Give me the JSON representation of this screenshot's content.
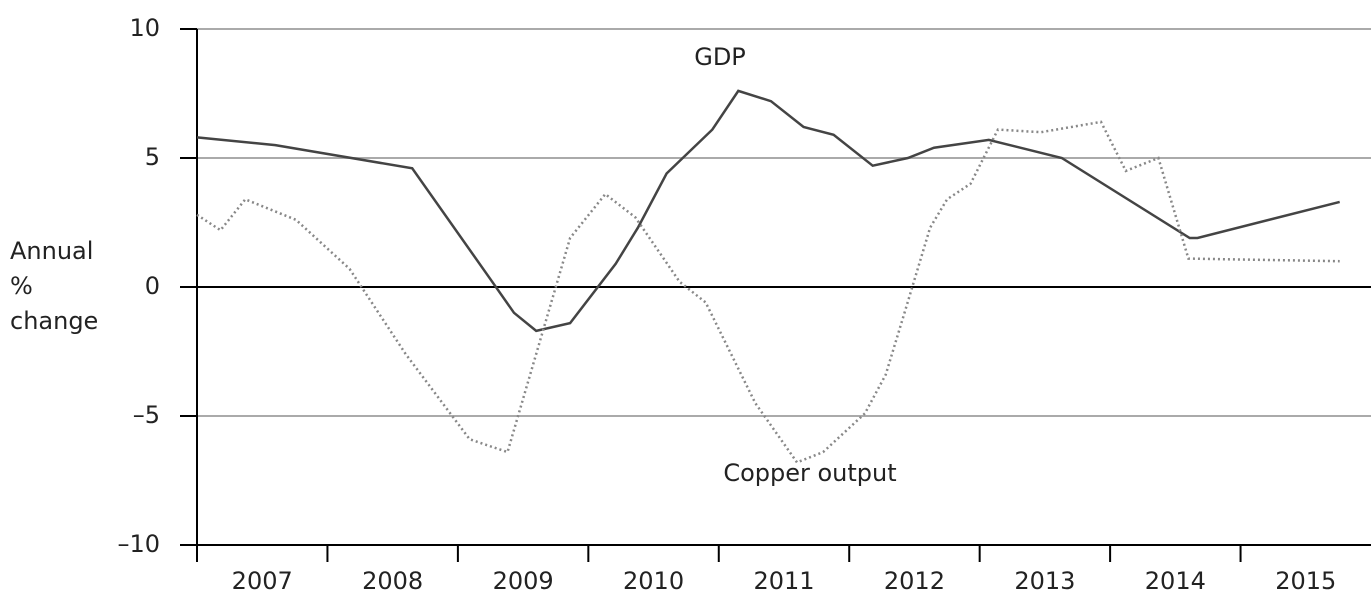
{
  "chart_data": {
    "type": "line",
    "y_label": [
      "Annual",
      "%",
      "change"
    ],
    "categories": [
      "2007",
      "2008",
      "2009",
      "2010",
      "2011",
      "2012",
      "2013",
      "2014",
      "2015"
    ],
    "xlim": [
      2007,
      2016
    ],
    "ylim": [
      -10,
      10
    ],
    "yticks": [
      {
        "value": -10,
        "label": "–10"
      },
      {
        "value": -5,
        "label": "–5"
      },
      0,
      5,
      10
    ],
    "grid": true,
    "series": [
      {
        "name": "GDP",
        "color": "#444444",
        "dash": false,
        "x": [
          2007.0,
          2007.6,
          2008.65,
          2009.25,
          2009.43,
          2009.6,
          2009.86,
          2010.21,
          2010.38,
          2010.6,
          2010.95,
          2011.15,
          2011.4,
          2011.65,
          2011.88,
          2012.18,
          2012.45,
          2012.65,
          2013.07,
          2013.63,
          2014.61,
          2014.67,
          2015.76
        ],
        "values": [
          5.8,
          5.5,
          4.6,
          0.3,
          -1.0,
          -1.7,
          -1.4,
          0.9,
          2.3,
          4.4,
          6.1,
          7.6,
          7.2,
          6.2,
          5.9,
          4.7,
          5.0,
          5.4,
          5.7,
          5.0,
          1.9,
          1.9,
          3.3
        ]
      },
      {
        "name": "Copper output",
        "color": "#888888",
        "dash": true,
        "x": [
          2007.0,
          2007.18,
          2007.37,
          2007.76,
          2008.17,
          2008.6,
          2009.09,
          2009.38,
          2009.86,
          2010.13,
          2010.36,
          2010.7,
          2010.9,
          2011.28,
          2011.6,
          2011.8,
          2012.12,
          2012.28,
          2012.43,
          2012.62,
          2012.75,
          2012.93,
          2013.14,
          2013.47,
          2013.93,
          2014.12,
          2014.37,
          2014.6,
          2015.76
        ],
        "values": [
          2.8,
          2.2,
          3.4,
          2.6,
          0.7,
          -2.6,
          -5.9,
          -6.4,
          1.9,
          3.6,
          2.7,
          0.2,
          -0.6,
          -4.5,
          -6.8,
          -6.4,
          -4.9,
          -3.4,
          -0.9,
          2.3,
          3.4,
          4.0,
          6.1,
          6.0,
          6.4,
          4.5,
          5.0,
          1.1,
          1.0
        ]
      }
    ]
  }
}
